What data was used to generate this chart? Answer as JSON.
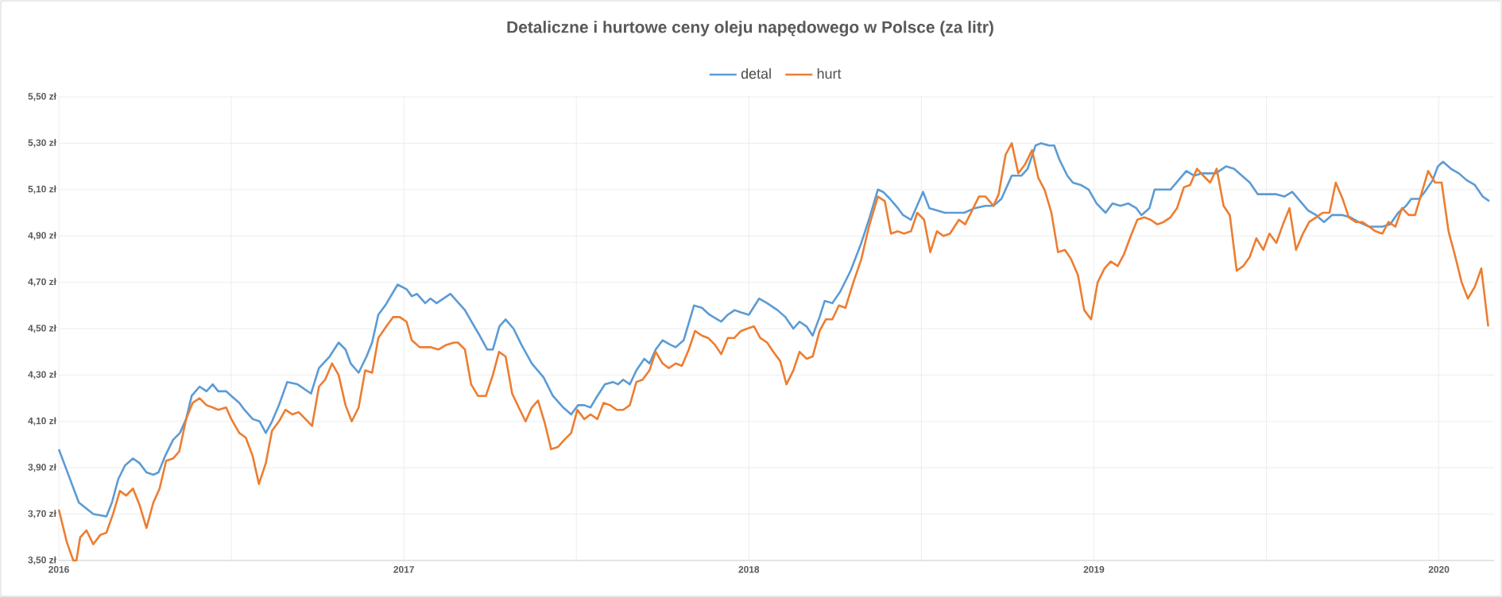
{
  "chart_data": {
    "type": "line",
    "title": "Detaliczne i hurtowe ceny oleju napędowego w Polsce (za litr)",
    "xlim": [
      2016,
      2020.16
    ],
    "xticks": [
      2016,
      {
        "value": 2016.5,
        "label": null
      },
      2017,
      {
        "value": 2017.5,
        "label": null
      },
      2018,
      {
        "value": 2018.5,
        "label": null
      },
      2019,
      {
        "value": 2019.5,
        "label": null
      },
      2020
    ],
    "ylim": [
      3.5,
      5.5
    ],
    "yticks": [
      {
        "value": 3.5,
        "label": "3,50 zł"
      },
      {
        "value": 3.7,
        "label": "3,70 zł"
      },
      {
        "value": 3.9,
        "label": "3,90 zł"
      },
      {
        "value": 4.1,
        "label": "4,10 zł"
      },
      {
        "value": 4.3,
        "label": "4,30 zł"
      },
      {
        "value": 4.5,
        "label": "4,50 zł"
      },
      {
        "value": 4.7,
        "label": "4,70 zł"
      },
      {
        "value": 4.9,
        "label": "4,90 zł"
      },
      {
        "value": 5.1,
        "label": "5,10 zł"
      },
      {
        "value": 5.3,
        "label": "5,30 zł"
      },
      {
        "value": 5.5,
        "label": "5,50 zł"
      }
    ],
    "grid": true,
    "legend": "top",
    "marker": "none",
    "line_style": "solid",
    "series": [
      {
        "name": "detal",
        "color": "#5b9bd5",
        "x": [
          2016.0,
          2016.058,
          2016.1,
          2016.138,
          2016.154,
          2016.172,
          2016.192,
          2016.215,
          2016.234,
          2016.254,
          2016.274,
          2016.289,
          2016.308,
          2016.331,
          2016.351,
          2016.369,
          2016.385,
          2016.408,
          2016.428,
          2016.446,
          2016.462,
          2016.485,
          2016.5,
          2016.523,
          2016.538,
          2016.562,
          2016.582,
          2016.6,
          2016.618,
          2016.638,
          2016.662,
          2016.692,
          2016.731,
          2016.754,
          2016.785,
          2016.811,
          2016.831,
          2016.846,
          2016.869,
          2016.892,
          2016.908,
          2016.926,
          2016.946,
          2016.982,
          2017.008,
          2017.023,
          2017.038,
          2017.062,
          2017.077,
          2017.095,
          2017.135,
          2017.177,
          2017.208,
          2017.22,
          2017.242,
          2017.258,
          2017.277,
          2017.295,
          2017.318,
          2017.341,
          2017.371,
          2017.405,
          2017.432,
          2017.462,
          2017.485,
          2017.505,
          2017.523,
          2017.541,
          2017.561,
          2017.583,
          2017.606,
          2017.621,
          2017.636,
          2017.655,
          2017.674,
          2017.697,
          2017.712,
          2017.73,
          2017.75,
          2017.773,
          2017.788,
          2017.811,
          2017.841,
          2017.864,
          2017.886,
          2017.909,
          2017.92,
          2017.939,
          2017.959,
          2017.977,
          2018.0,
          2018.03,
          2018.053,
          2018.083,
          2018.106,
          2018.129,
          2018.147,
          2018.167,
          2018.185,
          2018.205,
          2018.22,
          2018.242,
          2018.265,
          2018.295,
          2018.326,
          2018.348,
          2018.374,
          2018.389,
          2018.409,
          2018.432,
          2018.447,
          2018.47,
          2018.505,
          2018.523,
          2018.545,
          2018.568,
          2018.624,
          2018.655,
          2018.686,
          2018.709,
          2018.732,
          2018.762,
          2018.79,
          2018.808,
          2018.831,
          2018.847,
          2018.87,
          2018.885,
          2018.9,
          2018.923,
          2018.939,
          2018.962,
          2018.985,
          2019.008,
          2019.034,
          2019.054,
          2019.077,
          2019.1,
          2019.123,
          2019.138,
          2019.161,
          2019.176,
          2019.199,
          2019.222,
          2019.245,
          2019.268,
          2019.291,
          2019.314,
          2019.353,
          2019.383,
          2019.406,
          2019.429,
          2019.452,
          2019.475,
          2019.498,
          2019.529,
          2019.552,
          2019.575,
          2019.598,
          2019.621,
          2019.644,
          2019.667,
          2019.69,
          2019.721,
          2019.744,
          2019.767,
          2019.798,
          2019.836,
          2019.859,
          2019.882,
          2019.905,
          2019.92,
          2019.943,
          2019.959,
          2019.982,
          2019.997,
          2020.012,
          2020.035,
          2020.058,
          2020.081,
          2020.104,
          2020.127,
          2020.146
        ],
        "values": [
          3.98,
          3.75,
          3.7,
          3.69,
          3.75,
          3.85,
          3.91,
          3.94,
          3.92,
          3.88,
          3.87,
          3.88,
          3.95,
          4.02,
          4.05,
          4.11,
          4.21,
          4.25,
          4.23,
          4.26,
          4.23,
          4.23,
          4.21,
          4.18,
          4.15,
          4.11,
          4.1,
          4.05,
          4.1,
          4.17,
          4.27,
          4.26,
          4.22,
          4.33,
          4.38,
          4.44,
          4.41,
          4.35,
          4.31,
          4.38,
          4.44,
          4.56,
          4.6,
          4.69,
          4.67,
          4.64,
          4.65,
          4.61,
          4.63,
          4.61,
          4.65,
          4.58,
          4.5,
          4.47,
          4.41,
          4.41,
          4.51,
          4.54,
          4.5,
          4.43,
          4.35,
          4.29,
          4.21,
          4.16,
          4.13,
          4.17,
          4.17,
          4.16,
          4.21,
          4.26,
          4.27,
          4.26,
          4.28,
          4.26,
          4.32,
          4.37,
          4.35,
          4.41,
          4.45,
          4.43,
          4.42,
          4.45,
          4.6,
          4.59,
          4.56,
          4.54,
          4.53,
          4.56,
          4.58,
          4.57,
          4.56,
          4.63,
          4.61,
          4.58,
          4.55,
          4.5,
          4.53,
          4.51,
          4.47,
          4.55,
          4.62,
          4.61,
          4.66,
          4.75,
          4.87,
          4.97,
          5.1,
          5.09,
          5.06,
          5.02,
          4.99,
          4.97,
          5.09,
          5.02,
          5.01,
          5.0,
          5.0,
          5.02,
          5.03,
          5.03,
          5.06,
          5.16,
          5.16,
          5.19,
          5.29,
          5.3,
          5.29,
          5.29,
          5.23,
          5.16,
          5.13,
          5.12,
          5.1,
          5.04,
          5.0,
          5.04,
          5.03,
          5.04,
          5.02,
          4.99,
          5.02,
          5.1,
          5.1,
          5.1,
          5.14,
          5.18,
          5.16,
          5.17,
          5.17,
          5.2,
          5.19,
          5.16,
          5.13,
          5.08,
          5.08,
          5.08,
          5.07,
          5.09,
          5.05,
          5.01,
          4.99,
          4.96,
          4.99,
          4.99,
          4.98,
          4.96,
          4.94,
          4.94,
          4.95,
          5.0,
          5.03,
          5.06,
          5.06,
          5.09,
          5.14,
          5.2,
          5.22,
          5.19,
          5.17,
          5.14,
          5.12,
          5.07,
          5.05
        ]
      },
      {
        "name": "hurt",
        "color": "#ed7d31",
        "x": [
          2016.0,
          2016.023,
          2016.042,
          2016.051,
          2016.062,
          2016.08,
          2016.1,
          2016.12,
          2016.138,
          2016.157,
          2016.177,
          2016.195,
          2016.215,
          2016.234,
          2016.254,
          2016.274,
          2016.292,
          2016.311,
          2016.331,
          2016.349,
          2016.369,
          2016.388,
          2016.408,
          2016.428,
          2016.446,
          2016.462,
          2016.485,
          2016.5,
          2016.523,
          2016.542,
          2016.562,
          2016.58,
          2016.6,
          2016.618,
          2016.638,
          2016.657,
          2016.677,
          2016.695,
          2016.715,
          2016.734,
          2016.754,
          2016.772,
          2016.792,
          2016.811,
          2016.831,
          2016.849,
          2016.869,
          2016.888,
          2016.908,
          2016.926,
          2016.954,
          2016.969,
          2016.988,
          2017.008,
          2017.023,
          2017.046,
          2017.077,
          2017.1,
          2017.123,
          2017.146,
          2017.157,
          2017.177,
          2017.195,
          2017.215,
          2017.22,
          2017.238,
          2017.258,
          2017.276,
          2017.295,
          2017.314,
          2017.333,
          2017.353,
          2017.371,
          2017.389,
          2017.409,
          2017.427,
          2017.447,
          2017.465,
          2017.485,
          2017.503,
          2017.523,
          2017.541,
          2017.561,
          2017.579,
          2017.598,
          2017.617,
          2017.636,
          2017.655,
          2017.674,
          2017.692,
          2017.712,
          2017.73,
          2017.75,
          2017.768,
          2017.788,
          2017.806,
          2017.826,
          2017.844,
          2017.864,
          2017.882,
          2017.902,
          2017.92,
          2017.939,
          2017.958,
          2017.977,
          2017.995,
          2018.015,
          2018.033,
          2018.053,
          2018.071,
          2018.091,
          2018.109,
          2018.129,
          2018.147,
          2018.167,
          2018.185,
          2018.205,
          2018.223,
          2018.242,
          2018.261,
          2018.28,
          2018.303,
          2018.326,
          2018.348,
          2018.374,
          2018.394,
          2018.412,
          2018.432,
          2018.45,
          2018.47,
          2018.488,
          2018.508,
          2018.526,
          2018.545,
          2018.564,
          2018.583,
          2018.609,
          2018.627,
          2018.647,
          2018.667,
          2018.686,
          2018.709,
          2018.724,
          2018.744,
          2018.762,
          2018.781,
          2018.801,
          2018.821,
          2018.839,
          2018.857,
          2018.877,
          2018.896,
          2018.916,
          2018.934,
          2018.954,
          2018.972,
          2018.992,
          2019.011,
          2019.031,
          2019.049,
          2019.069,
          2019.087,
          2019.107,
          2019.126,
          2019.146,
          2019.164,
          2019.184,
          2019.202,
          2019.222,
          2019.241,
          2019.261,
          2019.279,
          2019.299,
          2019.317,
          2019.337,
          2019.356,
          2019.376,
          2019.394,
          2019.414,
          2019.433,
          2019.452,
          2019.471,
          2019.491,
          2019.509,
          2019.529,
          2019.548,
          2019.567,
          2019.586,
          2019.606,
          2019.624,
          2019.644,
          2019.663,
          2019.683,
          2019.701,
          2019.721,
          2019.739,
          2019.759,
          2019.778,
          2019.798,
          2019.816,
          2019.836,
          2019.854,
          2019.874,
          2019.893,
          2019.913,
          2019.931,
          2019.951,
          2019.969,
          2019.989,
          2020.008,
          2020.028,
          2020.046,
          2020.066,
          2020.084,
          2020.104,
          2020.123,
          2020.143
        ],
        "values": [
          3.72,
          3.58,
          3.5,
          3.5,
          3.6,
          3.63,
          3.57,
          3.61,
          3.62,
          3.7,
          3.8,
          3.78,
          3.81,
          3.74,
          3.64,
          3.75,
          3.81,
          3.93,
          3.94,
          3.97,
          4.11,
          4.18,
          4.2,
          4.17,
          4.16,
          4.15,
          4.16,
          4.11,
          4.05,
          4.03,
          3.95,
          3.83,
          3.92,
          4.06,
          4.1,
          4.15,
          4.13,
          4.14,
          4.11,
          4.08,
          4.25,
          4.28,
          4.35,
          4.3,
          4.17,
          4.1,
          4.16,
          4.32,
          4.31,
          4.46,
          4.52,
          4.55,
          4.55,
          4.53,
          4.45,
          4.42,
          4.42,
          4.41,
          4.43,
          4.44,
          4.44,
          4.41,
          4.26,
          4.21,
          4.21,
          4.21,
          4.3,
          4.4,
          4.38,
          4.22,
          4.16,
          4.1,
          4.16,
          4.19,
          4.09,
          3.98,
          3.99,
          4.02,
          4.05,
          4.15,
          4.11,
          4.13,
          4.11,
          4.18,
          4.17,
          4.15,
          4.15,
          4.17,
          4.27,
          4.28,
          4.32,
          4.4,
          4.35,
          4.33,
          4.35,
          4.34,
          4.41,
          4.49,
          4.47,
          4.46,
          4.43,
          4.39,
          4.46,
          4.46,
          4.49,
          4.5,
          4.51,
          4.46,
          4.44,
          4.4,
          4.36,
          4.26,
          4.32,
          4.4,
          4.37,
          4.38,
          4.49,
          4.54,
          4.54,
          4.6,
          4.59,
          4.7,
          4.8,
          4.94,
          5.07,
          5.05,
          4.91,
          4.92,
          4.91,
          4.92,
          5.0,
          4.97,
          4.83,
          4.92,
          4.9,
          4.91,
          4.97,
          4.95,
          5.01,
          5.07,
          5.07,
          5.03,
          5.08,
          5.25,
          5.3,
          5.17,
          5.21,
          5.27,
          5.15,
          5.1,
          5.0,
          4.83,
          4.84,
          4.8,
          4.73,
          4.58,
          4.54,
          4.7,
          4.76,
          4.79,
          4.77,
          4.82,
          4.9,
          4.97,
          4.98,
          4.97,
          4.95,
          4.96,
          4.98,
          5.02,
          5.11,
          5.12,
          5.19,
          5.16,
          5.13,
          5.19,
          5.03,
          4.99,
          4.75,
          4.77,
          4.81,
          4.89,
          4.84,
          4.91,
          4.87,
          4.95,
          5.02,
          4.84,
          4.91,
          4.96,
          4.98,
          5.0,
          5.0,
          5.13,
          5.06,
          4.98,
          4.96,
          4.96,
          4.94,
          4.92,
          4.91,
          4.96,
          4.94,
          5.02,
          4.99,
          4.99,
          5.09,
          5.18,
          5.13,
          5.13,
          4.92,
          4.82,
          4.7,
          4.63,
          4.68,
          4.76,
          4.51
        ]
      }
    ]
  }
}
